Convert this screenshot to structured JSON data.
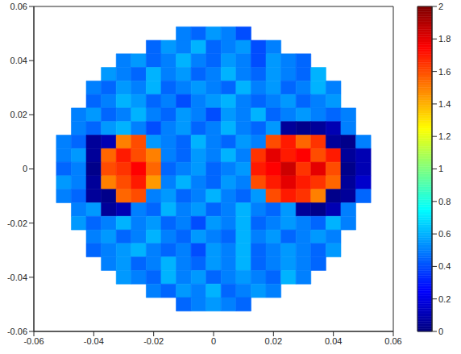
{
  "chart_data": {
    "type": "heatmap",
    "x_edges": [
      -0.0525,
      -0.0475,
      -0.0425,
      -0.0375,
      -0.0325,
      -0.0275,
      -0.0225,
      -0.0175,
      -0.0125,
      -0.0075,
      -0.0025,
      0.0025,
      0.0075,
      0.0125,
      0.0175,
      0.0225,
      0.0275,
      0.0325,
      0.0375,
      0.0425,
      0.0475,
      0.0525
    ],
    "y_edges": [
      0.0525,
      0.0475,
      0.0425,
      0.0375,
      0.0325,
      0.0275,
      0.0225,
      0.0175,
      0.0125,
      0.0075,
      0.0025,
      -0.0025,
      -0.0075,
      -0.0125,
      -0.0175,
      -0.0225,
      -0.0275,
      -0.0325,
      -0.0375,
      -0.0425,
      -0.0475,
      -0.0525
    ],
    "cells": [
      [
        null,
        null,
        null,
        null,
        null,
        null,
        null,
        null,
        0.5,
        0.45,
        0.55,
        0.5,
        0.4,
        null,
        null,
        null,
        null,
        null,
        null,
        null,
        null
      ],
      [
        null,
        null,
        null,
        null,
        null,
        null,
        0.45,
        0.55,
        0.5,
        0.6,
        0.45,
        0.5,
        0.55,
        0.4,
        0.5,
        null,
        null,
        null,
        null,
        null,
        null
      ],
      [
        null,
        null,
        null,
        null,
        0.5,
        0.55,
        0.45,
        0.5,
        0.6,
        0.5,
        0.45,
        0.55,
        0.5,
        0.4,
        0.55,
        0.5,
        0.45,
        null,
        null,
        null,
        null
      ],
      [
        null,
        null,
        null,
        0.55,
        0.5,
        0.45,
        0.6,
        0.5,
        0.55,
        0.45,
        0.5,
        0.6,
        0.5,
        0.45,
        0.55,
        0.5,
        0.45,
        0.6,
        null,
        null,
        null
      ],
      [
        null,
        null,
        0.5,
        0.45,
        0.55,
        0.5,
        0.6,
        0.45,
        0.5,
        0.55,
        0.5,
        0.45,
        0.6,
        0.5,
        0.55,
        0.45,
        0.5,
        0.6,
        0.5,
        null,
        null
      ],
      [
        null,
        null,
        0.45,
        0.5,
        0.6,
        0.55,
        0.45,
        0.5,
        0.4,
        0.5,
        0.55,
        0.6,
        0.5,
        0.45,
        0.5,
        0.55,
        0.45,
        0.5,
        0.55,
        null,
        null
      ],
      [
        null,
        0.5,
        0.55,
        0.45,
        0.5,
        0.6,
        0.5,
        0.45,
        0.55,
        0.5,
        0.4,
        0.55,
        0.5,
        0.6,
        0.45,
        0.5,
        0.55,
        0.5,
        0.45,
        0.5,
        null
      ],
      [
        null,
        0.5,
        0.45,
        0.55,
        0.6,
        0.5,
        0.4,
        0.5,
        0.55,
        0.45,
        0.5,
        0.6,
        0.5,
        0.45,
        0.55,
        0.05,
        0.02,
        0.05,
        0.1,
        0.5,
        null
      ],
      [
        0.5,
        0.45,
        0.05,
        0.1,
        1.5,
        1.6,
        0.55,
        0.5,
        0.45,
        0.6,
        0.5,
        0.45,
        0.55,
        0.5,
        1.6,
        1.7,
        1.55,
        1.65,
        0.05,
        0.02,
        0.5
      ],
      [
        0.5,
        0.55,
        0.05,
        1.55,
        1.7,
        1.6,
        1.5,
        0.5,
        0.45,
        0.55,
        0.5,
        0.6,
        0.5,
        1.65,
        1.8,
        1.7,
        1.75,
        1.6,
        1.7,
        0.05,
        0.1
      ],
      [
        0.45,
        0.5,
        0.02,
        1.6,
        1.65,
        1.75,
        1.55,
        0.45,
        0.5,
        0.55,
        0.45,
        0.5,
        0.55,
        1.7,
        1.75,
        1.85,
        1.65,
        1.8,
        1.6,
        0.02,
        0.1
      ],
      [
        0.55,
        0.5,
        0.05,
        1.5,
        1.6,
        1.7,
        1.45,
        0.5,
        0.6,
        0.5,
        0.45,
        0.55,
        0.5,
        1.6,
        1.7,
        1.8,
        1.7,
        1.65,
        1.55,
        0.05,
        0.15
      ],
      [
        0.5,
        0.45,
        0.05,
        0.02,
        1.55,
        1.6,
        0.5,
        0.55,
        0.45,
        0.5,
        0.6,
        0.5,
        0.45,
        0.55,
        1.6,
        1.7,
        1.65,
        1.5,
        0.02,
        0.05,
        0.45
      ],
      [
        null,
        0.5,
        0.55,
        0.05,
        0.1,
        0.5,
        0.45,
        0.6,
        0.5,
        0.55,
        0.45,
        0.5,
        0.6,
        0.5,
        0.45,
        0.55,
        0.05,
        0.02,
        0.1,
        0.5,
        null
      ],
      [
        null,
        0.55,
        0.45,
        0.5,
        0.6,
        0.5,
        0.55,
        0.45,
        0.5,
        0.4,
        0.55,
        0.5,
        0.6,
        0.45,
        0.5,
        0.55,
        0.5,
        0.45,
        0.6,
        0.5,
        null
      ],
      [
        null,
        null,
        0.5,
        0.55,
        0.45,
        0.5,
        0.6,
        0.5,
        0.45,
        0.55,
        0.5,
        0.45,
        0.6,
        0.5,
        0.55,
        0.45,
        0.5,
        0.55,
        0.5,
        null,
        null
      ],
      [
        null,
        null,
        0.45,
        0.5,
        0.55,
        0.6,
        0.5,
        0.45,
        0.5,
        0.4,
        0.55,
        0.5,
        0.6,
        0.45,
        0.5,
        0.55,
        0.5,
        0.45,
        0.55,
        null,
        null
      ],
      [
        null,
        null,
        null,
        0.5,
        0.55,
        0.45,
        0.5,
        0.6,
        0.5,
        0.45,
        0.55,
        0.5,
        0.6,
        0.45,
        0.5,
        0.55,
        0.5,
        0.45,
        null,
        null,
        null
      ],
      [
        null,
        null,
        null,
        null,
        0.55,
        0.5,
        0.45,
        0.6,
        0.5,
        0.55,
        0.45,
        0.5,
        0.55,
        0.5,
        0.45,
        0.6,
        0.5,
        null,
        null,
        null,
        null
      ],
      [
        null,
        null,
        null,
        null,
        null,
        null,
        0.5,
        0.45,
        0.55,
        0.5,
        0.6,
        0.45,
        0.5,
        0.55,
        0.5,
        null,
        null,
        null,
        null,
        null,
        null
      ],
      [
        null,
        null,
        null,
        null,
        null,
        null,
        null,
        null,
        0.45,
        0.5,
        0.55,
        0.5,
        0.45,
        null,
        null,
        null,
        null,
        null,
        null,
        null,
        null
      ]
    ],
    "xlim": [
      -0.06,
      0.06
    ],
    "ylim": [
      -0.06,
      0.06
    ],
    "xticks": [
      -0.06,
      -0.04,
      -0.02,
      0,
      0.02,
      0.04,
      0.06
    ],
    "yticks": [
      -0.06,
      -0.04,
      -0.02,
      0,
      0.02,
      0.04,
      0.06
    ],
    "colorbar_range": [
      0,
      2
    ],
    "colorbar_ticks": [
      0,
      0.2,
      0.4,
      0.6,
      0.8,
      1,
      1.2,
      1.4,
      1.6,
      1.8,
      2
    ]
  }
}
